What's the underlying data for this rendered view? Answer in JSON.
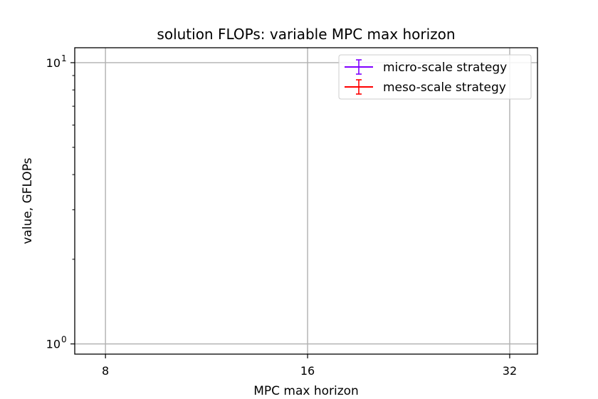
{
  "chart_data": {
    "type": "line",
    "title": "solution FLOPs: variable MPC max horizon",
    "xlabel": "MPC max horizon",
    "ylabel": "value, GFLOPs",
    "xscale": "log2",
    "yscale": "log10",
    "xlim": [
      7.2,
      35.2
    ],
    "ylim": [
      0.92,
      11.3
    ],
    "x_ticks": [
      {
        "value": 8,
        "label": "8"
      },
      {
        "value": 16,
        "label": "16"
      },
      {
        "value": 32,
        "label": "32"
      }
    ],
    "y_ticks": [
      {
        "value": 1,
        "base": "10",
        "exp": "0"
      },
      {
        "value": 10,
        "base": "10",
        "exp": "1"
      }
    ],
    "y_minor_ticks": [
      2,
      3,
      4,
      5,
      6,
      7,
      8,
      9
    ],
    "grid": true,
    "legend_position": "top-right",
    "series": [
      {
        "name": "micro-scale strategy",
        "color": "#7f00ff",
        "x": [],
        "y": [],
        "yerr": []
      },
      {
        "name": "meso-scale strategy",
        "color": "#ff0000",
        "x": [],
        "y": [],
        "yerr": []
      }
    ]
  }
}
